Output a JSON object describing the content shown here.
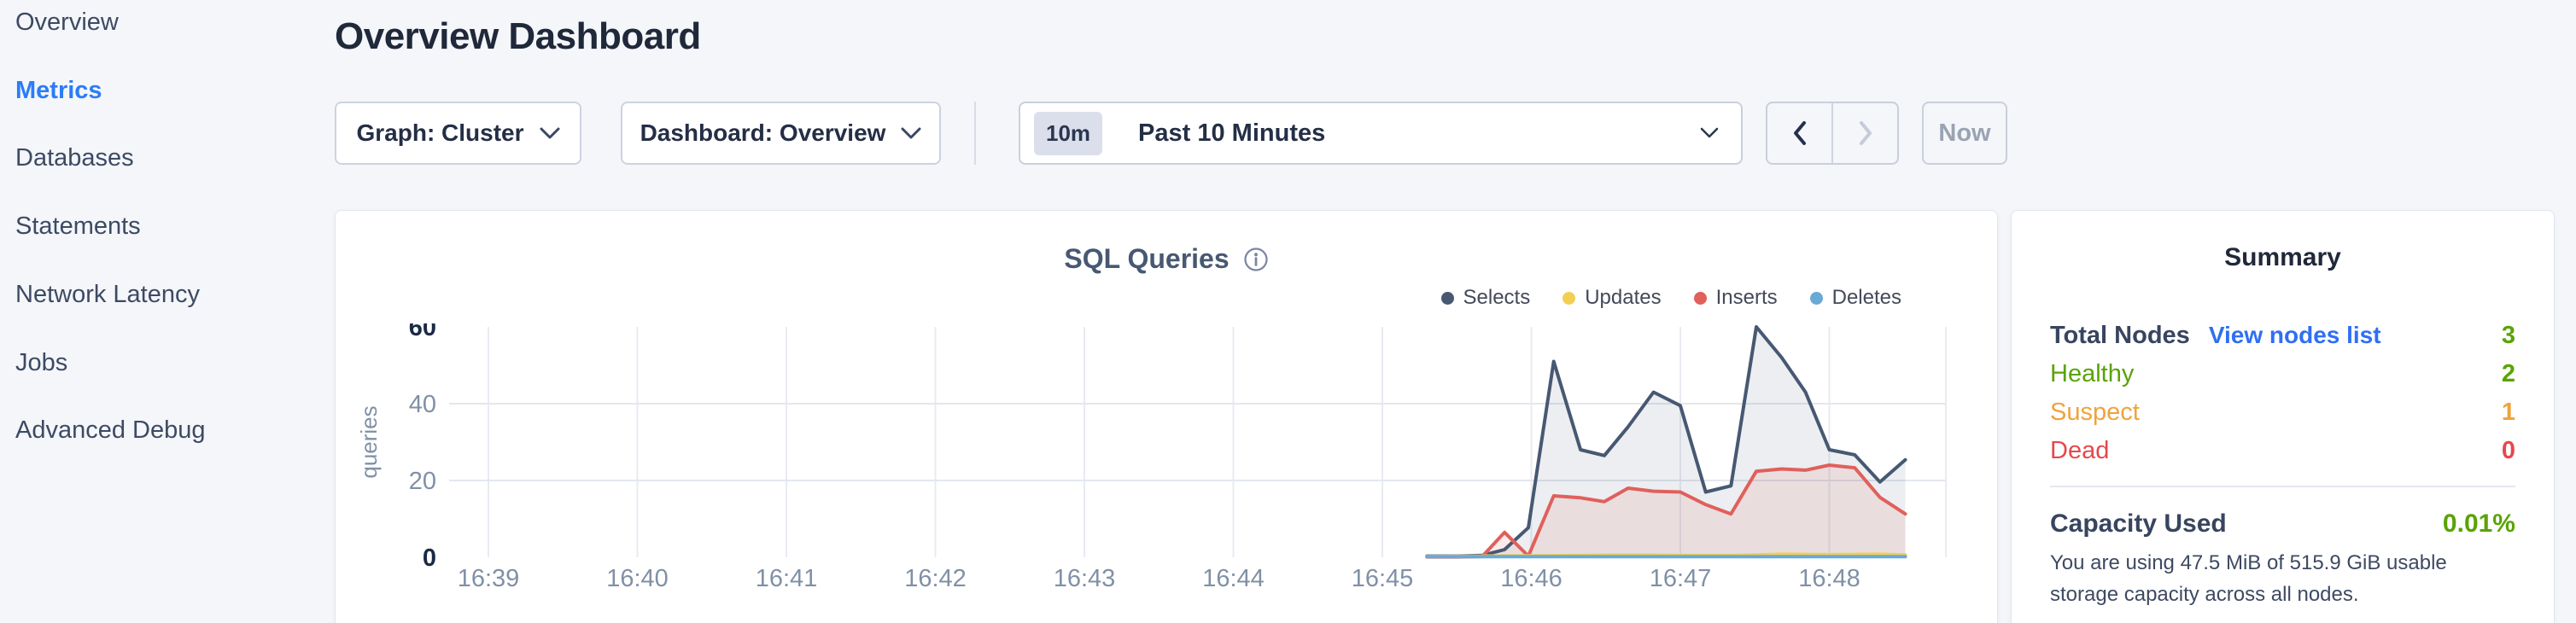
{
  "sidebar": {
    "items": [
      {
        "label": "Overview",
        "active": false
      },
      {
        "label": "Metrics",
        "active": true
      },
      {
        "label": "Databases",
        "active": false
      },
      {
        "label": "Statements",
        "active": false
      },
      {
        "label": "Network Latency",
        "active": false
      },
      {
        "label": "Jobs",
        "active": false
      },
      {
        "label": "Advanced Debug",
        "active": false
      }
    ],
    "active_color": "#2b7cf7",
    "item_color": "#3d4a63"
  },
  "header": {
    "title": "Overview Dashboard"
  },
  "toolbar": {
    "graph_dropdown": {
      "label": "Graph: Cluster"
    },
    "dashboard_dropdown": {
      "label": "Dashboard: Overview"
    },
    "time_picker": {
      "badge": "10m",
      "label": "Past 10 Minutes"
    },
    "prev_enabled": true,
    "next_enabled": false,
    "now_label": "Now"
  },
  "chart_data": {
    "type": "area",
    "title": "SQL Queries",
    "ylabel": "queries",
    "ylim": [
      0,
      60
    ],
    "y_ticks": [
      0,
      20,
      40,
      60
    ],
    "y_tick_strong": [
      0,
      60
    ],
    "x_tick_labels": [
      "16:39",
      "16:40",
      "16:41",
      "16:42",
      "16:43",
      "16:44",
      "16:45",
      "16:46",
      "16:47",
      "16:48"
    ],
    "x_unit": "minutes after 16:39",
    "grid": true,
    "legend_position": "top-right",
    "series": [
      {
        "name": "Selects",
        "color": "#475872",
        "fill": "rgba(71,88,114,0.10)",
        "points": [
          [
            6.3,
            0.3
          ],
          [
            6.5,
            0.3
          ],
          [
            6.67,
            0.5
          ],
          [
            6.82,
            2
          ],
          [
            6.98,
            7.7
          ],
          [
            7.15,
            51
          ],
          [
            7.33,
            28
          ],
          [
            7.49,
            26.5
          ],
          [
            7.65,
            34
          ],
          [
            7.82,
            43
          ],
          [
            8,
            39.5
          ],
          [
            8.17,
            17
          ],
          [
            8.34,
            18.6
          ],
          [
            8.51,
            60
          ],
          [
            8.68,
            52
          ],
          [
            8.84,
            43
          ],
          [
            9,
            28
          ],
          [
            9.17,
            26.7
          ],
          [
            9.34,
            19.6
          ],
          [
            9.51,
            25.4
          ]
        ]
      },
      {
        "name": "Updates",
        "color": "#f2ce53",
        "fill": null,
        "points": [
          [
            6.3,
            0.2
          ],
          [
            6.67,
            0.3
          ],
          [
            7,
            0.4
          ],
          [
            7.33,
            0.5
          ],
          [
            7.65,
            0.6
          ],
          [
            8,
            0.5
          ],
          [
            8.34,
            0.5
          ],
          [
            8.68,
            0.8
          ],
          [
            9,
            0.7
          ],
          [
            9.34,
            0.8
          ],
          [
            9.51,
            0.6
          ]
        ]
      },
      {
        "name": "Inserts",
        "color": "#e0605c",
        "fill": "rgba(224,96,92,0.12)",
        "points": [
          [
            6.3,
            0.1
          ],
          [
            6.5,
            0.1
          ],
          [
            6.67,
            0.2
          ],
          [
            6.82,
            6.5
          ],
          [
            6.98,
            0.3
          ],
          [
            7.15,
            16
          ],
          [
            7.33,
            15.5
          ],
          [
            7.49,
            14.5
          ],
          [
            7.65,
            18
          ],
          [
            7.82,
            17.2
          ],
          [
            8,
            17
          ],
          [
            8.17,
            13.7
          ],
          [
            8.34,
            11.3
          ],
          [
            8.51,
            22.4
          ],
          [
            8.68,
            23
          ],
          [
            8.84,
            22.7
          ],
          [
            9,
            24
          ],
          [
            9.17,
            23.3
          ],
          [
            9.34,
            15.6
          ],
          [
            9.51,
            11.3
          ]
        ]
      },
      {
        "name": "Deletes",
        "color": "#68a9d6",
        "fill": null,
        "points": [
          [
            6.3,
            0.15
          ],
          [
            7,
            0.15
          ],
          [
            8,
            0.15
          ],
          [
            9,
            0.15
          ],
          [
            9.51,
            0.15
          ]
        ]
      }
    ]
  },
  "summary": {
    "title": "Summary",
    "total_nodes_label": "Total Nodes",
    "view_nodes_link": "View nodes list",
    "total_nodes_value": "3",
    "total_nodes_color": "#5aa305",
    "node_rows": [
      {
        "label": "Healthy",
        "value": "2",
        "color": "#5aa305"
      },
      {
        "label": "Suspect",
        "value": "1",
        "color": "#efa33c"
      },
      {
        "label": "Dead",
        "value": "0",
        "color": "#e5484d"
      }
    ],
    "capacity_label": "Capacity Used",
    "capacity_value": "0.01%",
    "capacity_color": "#5aa305",
    "capacity_description": "You are using 47.5 MiB of 515.9 GiB usable storage capacity across all nodes."
  },
  "colors": {
    "page_bg": "#f4f6fa",
    "card_bg": "#ffffff",
    "link_blue": "#2f6ff2",
    "grid_line": "#e8ebf1"
  }
}
